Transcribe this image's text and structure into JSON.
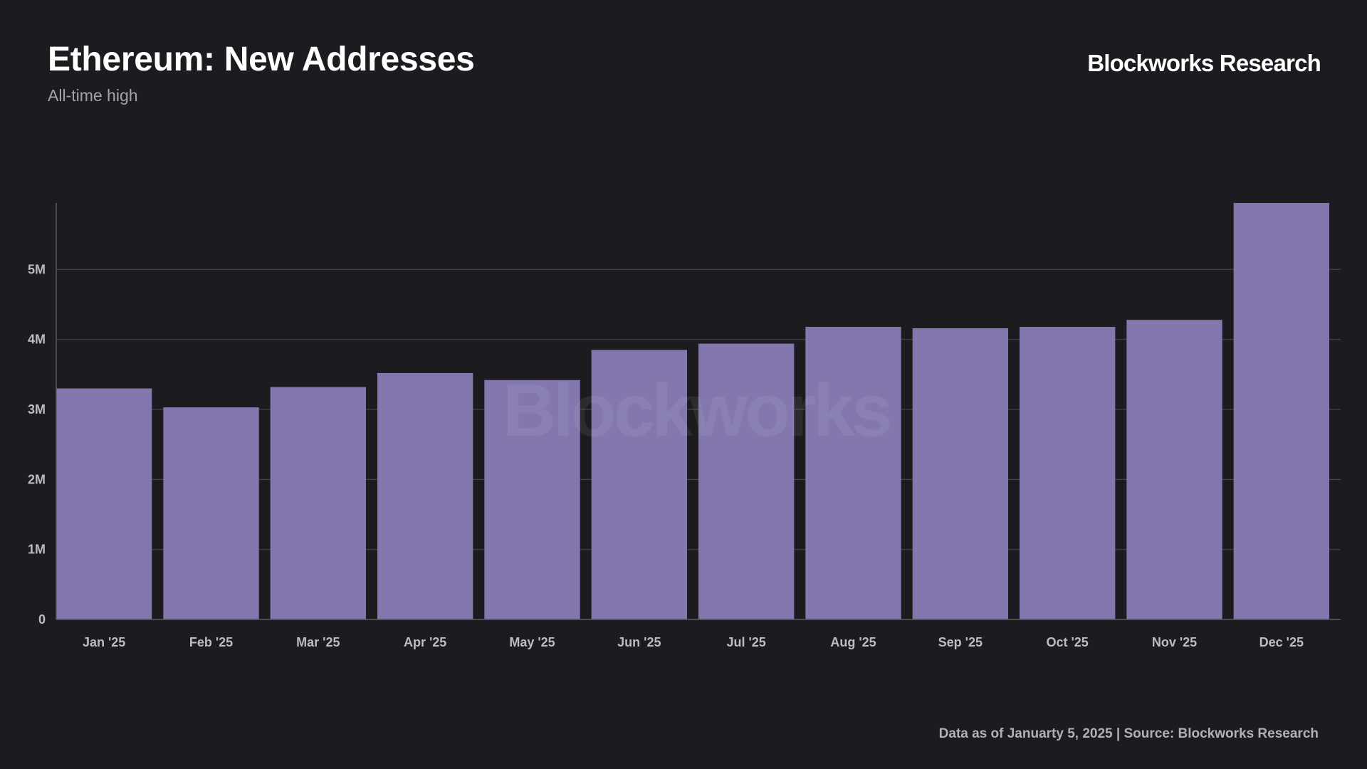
{
  "header": {
    "title": "Ethereum: New Addresses",
    "subtitle": "All-time high",
    "brand": "Blockworks Research"
  },
  "footer": {
    "note": "Data as of Januarty 5, 2025 | Source: Blockworks Research"
  },
  "watermark": "Blockworks",
  "colors": {
    "background": "#1c1c20",
    "bar": "#8377ad",
    "gridline": "#45434c",
    "axis": "#5d5b63"
  },
  "chart_data": {
    "type": "bar",
    "categories": [
      "Jan '25",
      "Feb '25",
      "Mar '25",
      "Apr '25",
      "May '25",
      "Jun '25",
      "Jul '25",
      "Aug '25",
      "Sep '25",
      "Oct '25",
      "Nov '25",
      "Dec '25"
    ],
    "values": [
      3300000,
      3030000,
      3320000,
      3520000,
      3420000,
      3850000,
      3940000,
      4180000,
      4160000,
      4180000,
      4280000,
      5950000
    ],
    "ylim": [
      0,
      5950000
    ],
    "yticks": [
      0,
      1000000,
      2000000,
      3000000,
      4000000,
      5000000
    ],
    "ytick_labels": [
      "0",
      "1M",
      "2M",
      "3M",
      "4M",
      "5M"
    ],
    "grid": true,
    "xlabel": "",
    "ylabel": ""
  }
}
